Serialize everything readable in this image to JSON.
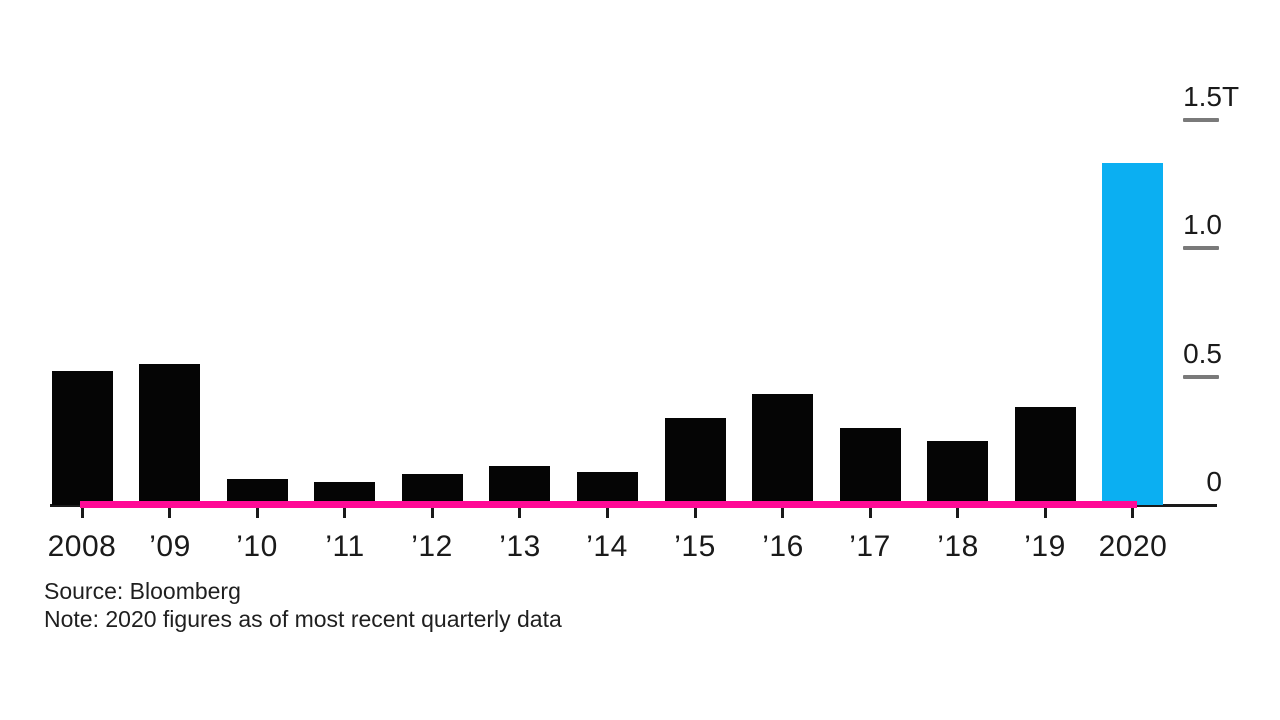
{
  "chart_data": {
    "type": "bar",
    "title": "",
    "xlabel": "",
    "ylabel": "",
    "unit": "trillions (T)",
    "categories": [
      "2008",
      "’09",
      "’10",
      "’11",
      "’12",
      "’13",
      "’14",
      "’15",
      "’16",
      "’17",
      "’18",
      "’19",
      "2020"
    ],
    "values": [
      0.52,
      0.55,
      0.1,
      0.09,
      0.12,
      0.15,
      0.13,
      0.34,
      0.43,
      0.3,
      0.25,
      0.38,
      1.33
    ],
    "highlight_index": 12,
    "ylim": [
      0,
      1.5
    ],
    "grid": false,
    "legend": null,
    "yticks": [
      {
        "value": 0,
        "label": "0",
        "suffix": "",
        "gridtick": false
      },
      {
        "value": 0.5,
        "label": "0.5",
        "suffix": "",
        "gridtick": true
      },
      {
        "value": 1.0,
        "label": "1.0",
        "suffix": "",
        "gridtick": true
      },
      {
        "value": 1.5,
        "label": "1.5",
        "suffix": "T",
        "gridtick": true
      }
    ],
    "colors": {
      "bar": "#050505",
      "highlight_bar": "#0BAFF2",
      "baseline": "#FF0A96",
      "grid_tick": "#7a7a7a",
      "axis_line": "#1a1a1a",
      "x_tick": "#1a1a1a",
      "label_text": "#1a1a1a"
    }
  },
  "footer": {
    "source": "Source: Bloomberg",
    "note": "Note: 2020 figures as of most recent quarterly data"
  }
}
